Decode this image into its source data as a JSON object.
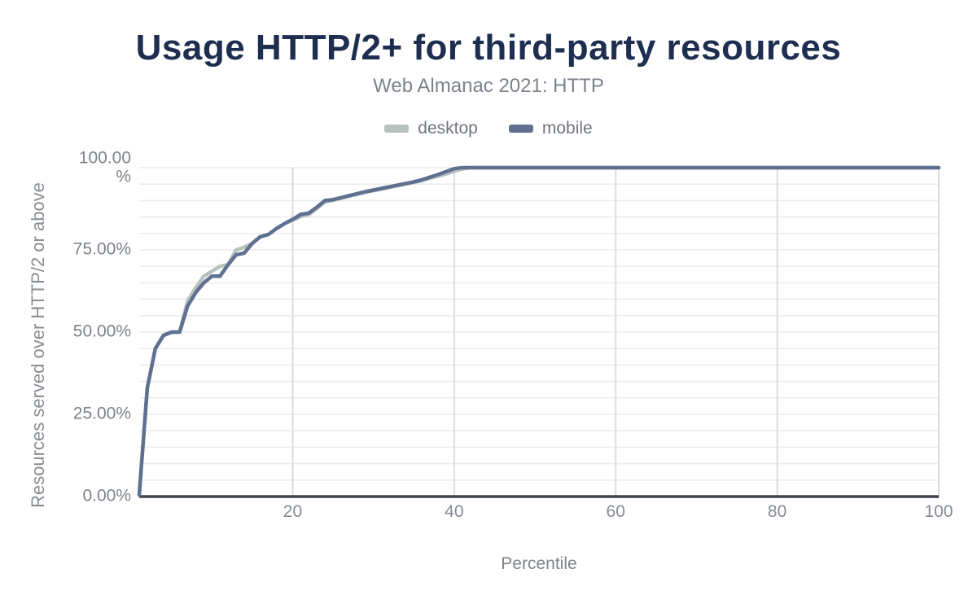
{
  "header": {
    "title": "Usage HTTP/2+ for third-party resources",
    "subtitle": "Web Almanac 2021: HTTP"
  },
  "colors": {
    "background": "#ffffff",
    "title": "#1e2e50",
    "subtitle": "#7d838b",
    "tick_label": "#858b93",
    "grid_horizontal": "#ececec",
    "grid_vertical": "#dcdcdc",
    "axis_line": "#3d434b",
    "desktop": "#b8c2bc",
    "mobile": "#5f7091"
  },
  "chart_data": {
    "type": "line",
    "title": "Usage HTTP/2+ for third-party resources",
    "subtitle": "Web Almanac 2021: HTTP",
    "xlabel": "Percentile",
    "ylabel": "Resources served over HTTP/2 or above",
    "xlim": [
      1,
      100
    ],
    "ylim": [
      0,
      100
    ],
    "x_start": 1,
    "x_step": 1,
    "x_ticks": [
      20,
      40,
      60,
      80,
      100
    ],
    "y_ticks": [
      {
        "value": 100,
        "lines": [
          "100.00",
          "%"
        ]
      },
      {
        "value": 75,
        "lines": [
          "75.00%"
        ]
      },
      {
        "value": 50,
        "lines": [
          "50.00%"
        ]
      },
      {
        "value": 25,
        "lines": [
          "25.00%"
        ]
      },
      {
        "value": 0,
        "lines": [
          "0.00%"
        ]
      }
    ],
    "grid": {
      "horizontal_step": 5,
      "vertical_at_x_ticks": true
    },
    "legend_position": "top",
    "series": [
      {
        "name": "desktop",
        "color": "#b8c2bc",
        "values": [
          0.5,
          33,
          45,
          49,
          50,
          50,
          59.5,
          63.5,
          67,
          68.5,
          70,
          70.5,
          75,
          75.8,
          77,
          79,
          79.7,
          81.5,
          83,
          84,
          85.2,
          85.8,
          87.6,
          89.6,
          90.1,
          90.7,
          91.3,
          91.9,
          92.5,
          93,
          93.5,
          94,
          94.5,
          95,
          95.5,
          96.1,
          96.8,
          97.4,
          98.1,
          98.9,
          99.6,
          100,
          100,
          100,
          100,
          100,
          100,
          100,
          100,
          100,
          100,
          100,
          100,
          100,
          100,
          100,
          100,
          100,
          100,
          100,
          100,
          100,
          100,
          100,
          100,
          100,
          100,
          100,
          100,
          100,
          100,
          100,
          100,
          100,
          100,
          100,
          100,
          100,
          100,
          100,
          100,
          100,
          100,
          100,
          100,
          100,
          100,
          100,
          100,
          100,
          100,
          100,
          100,
          100,
          100,
          100,
          100,
          100,
          100,
          100
        ]
      },
      {
        "name": "mobile",
        "color": "#5f7091",
        "values": [
          0.5,
          33,
          45,
          49,
          50,
          50,
          58,
          62,
          65,
          67,
          67,
          70.5,
          73.5,
          74,
          77,
          79,
          79.7,
          81.5,
          83,
          84.3,
          85.8,
          86.2,
          88,
          90,
          90.3,
          90.9,
          91.5,
          92.1,
          92.7,
          93.2,
          93.7,
          94.2,
          94.7,
          95.2,
          95.7,
          96.3,
          97.1,
          97.9,
          98.8,
          99.7,
          100,
          100,
          100,
          100,
          100,
          100,
          100,
          100,
          100,
          100,
          100,
          100,
          100,
          100,
          100,
          100,
          100,
          100,
          100,
          100,
          100,
          100,
          100,
          100,
          100,
          100,
          100,
          100,
          100,
          100,
          100,
          100,
          100,
          100,
          100,
          100,
          100,
          100,
          100,
          100,
          100,
          100,
          100,
          100,
          100,
          100,
          100,
          100,
          100,
          100,
          100,
          100,
          100,
          100,
          100,
          100,
          100,
          100,
          100,
          100
        ]
      }
    ]
  }
}
